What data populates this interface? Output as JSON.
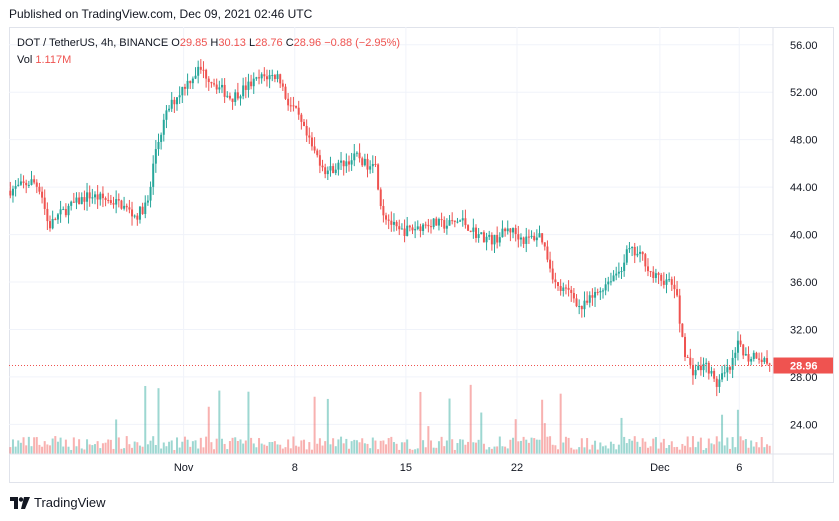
{
  "published": "Published on TradingView.com, Dec 09, 2021 02:46 UTC",
  "legend": {
    "symbol": "DOT / TetherUS, 4h, BINANCE",
    "open_label": "O",
    "open": "29.85",
    "high_label": "H",
    "high": "30.13",
    "low_label": "L",
    "low": "28.76",
    "close_label": "C",
    "close": "28.96",
    "change": "−0.88 (−2.95%)",
    "vol_label": "Vol",
    "vol": "1.117M"
  },
  "footer": {
    "brand": "TradingView",
    "logo_icon": "tradingview-logo-icon"
  },
  "colors": {
    "up": "#26a69a",
    "down": "#ef5350",
    "grid": "#f0f3fa",
    "text": "#131722"
  },
  "chart_data": {
    "type": "candlestick",
    "title": "DOT / TetherUS, 4h, BINANCE",
    "ylim": [
      21.5,
      57.5
    ],
    "yticks": [
      "56.00",
      "52.00",
      "48.00",
      "44.00",
      "40.00",
      "36.00",
      "32.00",
      "28.00",
      "24.00"
    ],
    "ytick_values": [
      56,
      52,
      48,
      44,
      40,
      36,
      32,
      28,
      24
    ],
    "xticks": [
      {
        "label": "Nov",
        "day": 11
      },
      {
        "label": "8",
        "day": 18
      },
      {
        "label": "15",
        "day": 25
      },
      {
        "label": "22",
        "day": 32
      },
      {
        "label": "Dec",
        "day": 41
      },
      {
        "label": "6",
        "day": 46
      }
    ],
    "x_range_days": [
      0,
      48
    ],
    "last_price": "28.96",
    "last_price_value": 28.96,
    "price_path": [
      [
        0,
        43.7
      ],
      [
        1.5,
        44.5
      ],
      [
        2.0,
        43.8
      ],
      [
        2.5,
        40.6
      ],
      [
        3.0,
        41.5
      ],
      [
        4.0,
        42.5
      ],
      [
        5.0,
        43.3
      ],
      [
        6.0,
        43.0
      ],
      [
        7.0,
        42.6
      ],
      [
        8.0,
        41.5
      ],
      [
        8.8,
        42.8
      ],
      [
        9.2,
        47.0
      ],
      [
        10.0,
        50.5
      ],
      [
        11.0,
        52.5
      ],
      [
        12.0,
        54.0
      ],
      [
        13.0,
        52.7
      ],
      [
        14.0,
        51.5
      ],
      [
        15.0,
        52.5
      ],
      [
        16.0,
        53.3
      ],
      [
        17.0,
        53.4
      ],
      [
        17.5,
        51.3
      ],
      [
        18.0,
        50.5
      ],
      [
        19.0,
        47.5
      ],
      [
        20.0,
        45.3
      ],
      [
        21.0,
        46.0
      ],
      [
        22.0,
        46.6
      ],
      [
        22.5,
        45.8
      ],
      [
        23.0,
        46.5
      ],
      [
        23.5,
        42.0
      ],
      [
        24.5,
        40.2
      ],
      [
        25.5,
        40.5
      ],
      [
        26.5,
        41.0
      ],
      [
        27.5,
        40.8
      ],
      [
        28.5,
        41.2
      ],
      [
        29.5,
        40.0
      ],
      [
        30.5,
        39.5
      ],
      [
        31.5,
        40.5
      ],
      [
        32.5,
        39.5
      ],
      [
        33.5,
        40.0
      ],
      [
        34.5,
        35.5
      ],
      [
        35.5,
        35.0
      ],
      [
        36.0,
        33.7
      ],
      [
        37.0,
        35.0
      ],
      [
        38.0,
        36.5
      ],
      [
        38.5,
        37.0
      ],
      [
        39.0,
        38.7
      ],
      [
        40.0,
        38.0
      ],
      [
        40.5,
        36.5
      ],
      [
        41.5,
        36.0
      ],
      [
        42.0,
        35.5
      ],
      [
        42.2,
        33.0
      ],
      [
        42.6,
        30.0
      ],
      [
        43.0,
        28.5
      ],
      [
        44.0,
        29.0
      ],
      [
        44.5,
        27.3
      ],
      [
        45.5,
        28.8
      ],
      [
        46.0,
        31.0
      ],
      [
        46.5,
        29.5
      ],
      [
        47.0,
        30.0
      ],
      [
        48.0,
        28.96
      ]
    ],
    "volume_max": 7
  }
}
